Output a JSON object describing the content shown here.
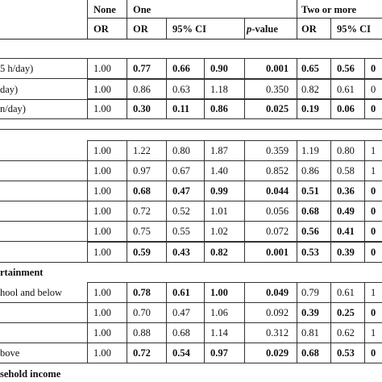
{
  "header": {
    "group_none": "None",
    "group_one": "One",
    "group_two": "Two or more",
    "sub": [
      "OR",
      "OR",
      "95% CI",
      "p-value",
      "OR",
      "95% CI"
    ]
  },
  "rows": [
    {
      "label": "5 h/day)",
      "none": "1.00",
      "one": [
        {
          "v": "0.77",
          "b": true
        },
        {
          "v": "0.66",
          "b": true
        },
        {
          "v": "0.90",
          "b": true
        }
      ],
      "p": {
        "v": "0.001",
        "b": true
      },
      "two": [
        {
          "v": "0.65",
          "b": true
        },
        {
          "v": "0.56",
          "b": true
        },
        {
          "v": "0",
          "b": true
        }
      ]
    },
    {
      "label": "day)",
      "none": "1.00",
      "one": [
        {
          "v": "0.86",
          "b": false
        },
        {
          "v": "0.63",
          "b": false
        },
        {
          "v": "1.18",
          "b": false
        }
      ],
      "p": {
        "v": "0.350",
        "b": false
      },
      "two": [
        {
          "v": "0.82",
          "b": false
        },
        {
          "v": "0.61",
          "b": false
        },
        {
          "v": "0",
          "b": false
        }
      ]
    },
    {
      "label": "n/day)",
      "none": "1.00",
      "one": [
        {
          "v": "0.30",
          "b": true
        },
        {
          "v": "0.11",
          "b": true
        },
        {
          "v": "0.86",
          "b": true
        }
      ],
      "p": {
        "v": "0.025",
        "b": true
      },
      "two": [
        {
          "v": "0.19",
          "b": true
        },
        {
          "v": "0.06",
          "b": true
        },
        {
          "v": "0",
          "b": true
        }
      ]
    },
    {
      "label": "",
      "none": "1.00",
      "one": [
        {
          "v": "1.22",
          "b": false
        },
        {
          "v": "0.80",
          "b": false
        },
        {
          "v": "1.87",
          "b": false
        }
      ],
      "p": {
        "v": "0.359",
        "b": false
      },
      "two": [
        {
          "v": "1.19",
          "b": false
        },
        {
          "v": "0.80",
          "b": false
        },
        {
          "v": "1",
          "b": false
        }
      ]
    },
    {
      "label": "",
      "none": "1.00",
      "one": [
        {
          "v": "0.97",
          "b": false
        },
        {
          "v": "0.67",
          "b": false
        },
        {
          "v": "1.40",
          "b": false
        }
      ],
      "p": {
        "v": "0.852",
        "b": false
      },
      "two": [
        {
          "v": "0.86",
          "b": false
        },
        {
          "v": "0.58",
          "b": false
        },
        {
          "v": "1",
          "b": false
        }
      ]
    },
    {
      "label": "",
      "none": "1.00",
      "one": [
        {
          "v": "0.68",
          "b": true
        },
        {
          "v": "0.47",
          "b": true
        },
        {
          "v": "0.99",
          "b": true
        }
      ],
      "p": {
        "v": "0.044",
        "b": true
      },
      "two": [
        {
          "v": "0.51",
          "b": true
        },
        {
          "v": "0.36",
          "b": true
        },
        {
          "v": "0",
          "b": true
        }
      ]
    },
    {
      "label": "",
      "none": "1.00",
      "one": [
        {
          "v": "0.72",
          "b": false
        },
        {
          "v": "0.52",
          "b": false
        },
        {
          "v": "1.01",
          "b": false
        }
      ],
      "p": {
        "v": "0.056",
        "b": false
      },
      "two": [
        {
          "v": "0.68",
          "b": true
        },
        {
          "v": "0.49",
          "b": true
        },
        {
          "v": "0",
          "b": true
        }
      ]
    },
    {
      "label": "",
      "none": "1.00",
      "one": [
        {
          "v": "0.75",
          "b": false
        },
        {
          "v": "0.55",
          "b": false
        },
        {
          "v": "1.02",
          "b": false
        }
      ],
      "p": {
        "v": "0.072",
        "b": false
      },
      "two": [
        {
          "v": "0.56",
          "b": true
        },
        {
          "v": "0.41",
          "b": true
        },
        {
          "v": "0",
          "b": true
        }
      ]
    },
    {
      "label": "",
      "none": "1.00",
      "one": [
        {
          "v": "0.59",
          "b": true
        },
        {
          "v": "0.43",
          "b": true
        },
        {
          "v": "0.82",
          "b": true
        }
      ],
      "p": {
        "v": "0.001",
        "b": true
      },
      "two": [
        {
          "v": "0.53",
          "b": true
        },
        {
          "v": "0.39",
          "b": true
        },
        {
          "v": "0",
          "b": true
        }
      ]
    },
    {
      "label": "hool and below",
      "none": "1.00",
      "one": [
        {
          "v": "0.78",
          "b": true
        },
        {
          "v": "0.61",
          "b": true
        },
        {
          "v": "1.00",
          "b": true
        }
      ],
      "p": {
        "v": "0.049",
        "b": true
      },
      "two": [
        {
          "v": "0.79",
          "b": false
        },
        {
          "v": "0.61",
          "b": false
        },
        {
          "v": "1",
          "b": false
        }
      ]
    },
    {
      "label": "",
      "none": "1.00",
      "one": [
        {
          "v": "0.70",
          "b": false
        },
        {
          "v": "0.47",
          "b": false
        },
        {
          "v": "1.06",
          "b": false
        }
      ],
      "p": {
        "v": "0.092",
        "b": false
      },
      "two": [
        {
          "v": "0.39",
          "b": true
        },
        {
          "v": "0.25",
          "b": true
        },
        {
          "v": "0",
          "b": true
        }
      ]
    },
    {
      "label": "",
      "none": "1.00",
      "one": [
        {
          "v": "0.88",
          "b": false
        },
        {
          "v": "0.68",
          "b": false
        },
        {
          "v": "1.14",
          "b": false
        }
      ],
      "p": {
        "v": "0.312",
        "b": false
      },
      "two": [
        {
          "v": "0.81",
          "b": false
        },
        {
          "v": "0.62",
          "b": false
        },
        {
          "v": "1",
          "b": false
        }
      ]
    },
    {
      "label": "bove",
      "none": "1.00",
      "one": [
        {
          "v": "0.72",
          "b": true
        },
        {
          "v": "0.54",
          "b": true
        },
        {
          "v": "0.97",
          "b": true
        }
      ],
      "p": {
        "v": "0.029",
        "b": true
      },
      "two": [
        {
          "v": "0.68",
          "b": true
        },
        {
          "v": "0.53",
          "b": true
        },
        {
          "v": "0",
          "b": true
        }
      ]
    }
  ],
  "sections": {
    "attainment": "rtainment",
    "income": "sehold income"
  }
}
